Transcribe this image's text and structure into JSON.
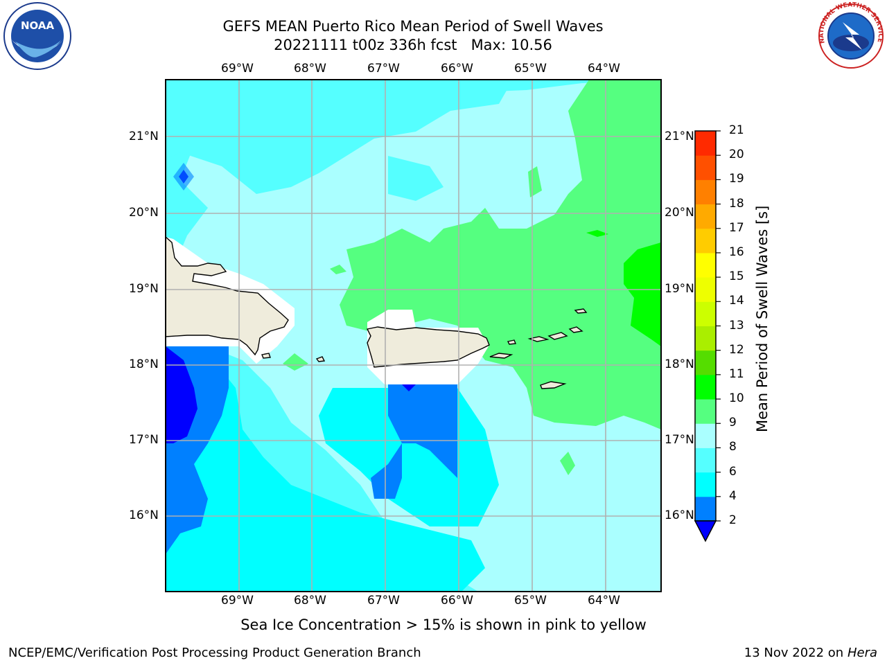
{
  "header": {
    "title_line1": "GEFS MEAN Puerto Rico Mean Period of Swell Waves",
    "title_line2": "20221111 t00z 336h fcst   Max: 10.56"
  },
  "map": {
    "lon_labels": [
      "69°W",
      "68°W",
      "67°W",
      "66°W",
      "65°W",
      "64°W"
    ],
    "lat_labels": [
      "21°N",
      "20°N",
      "19°N",
      "18°N",
      "17°N",
      "16°N"
    ],
    "land_color": "#efecdc"
  },
  "colorbar": {
    "label": "Mean Period of Swell Waves [s]",
    "ticks": [
      "2",
      "4",
      "6",
      "8",
      "9",
      "10",
      "11",
      "12",
      "13",
      "14",
      "15",
      "16",
      "17",
      "18",
      "19",
      "20",
      "21"
    ],
    "colors": [
      "#0000ff",
      "#0080ff",
      "#00ffff",
      "#55ffff",
      "#aaffff",
      "#55ff80",
      "#00ff00",
      "#55dd00",
      "#aaee00",
      "#ccff00",
      "#eeff00",
      "#ffff00",
      "#ffcc00",
      "#ffaa00",
      "#ff8000",
      "#ff5000",
      "#ff2a00",
      "#ff0000"
    ]
  },
  "note": "Sea Ice Concentration > 15% is shown in pink to yellow",
  "footer": {
    "left": "NCEP/EMC/Verification Post Processing Product Generation Branch",
    "right_date": "13 Nov 2022 on",
    "right_host": "Hera"
  },
  "logos": {
    "noaa_text": "NOAA",
    "nws_text": "NATIONAL WEATHER SERVICE"
  }
}
